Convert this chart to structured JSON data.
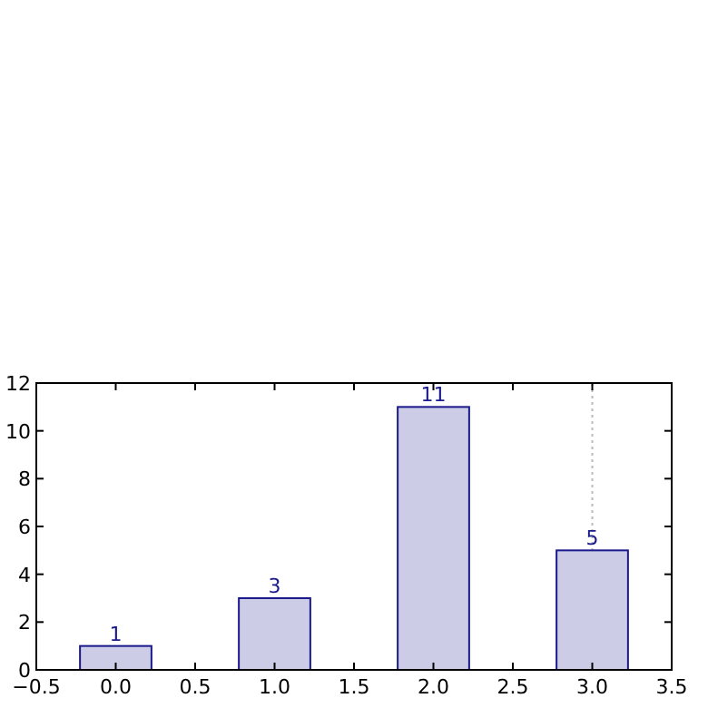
{
  "chart_data": {
    "type": "bar",
    "x": [
      0,
      1,
      2,
      3
    ],
    "values": [
      1,
      3,
      11,
      5
    ],
    "color": "#cccce6",
    "data_labels": true,
    "xlim": [
      -0.5,
      3.5
    ],
    "xticks": [
      {
        "value": -0.5,
        "label": "−0.5"
      },
      {
        "value": 0,
        "label": "0.0"
      },
      {
        "value": 0.5,
        "label": "0.5"
      },
      {
        "value": 1,
        "label": "1.0"
      },
      {
        "value": 1.5,
        "label": "1.5"
      },
      {
        "value": 2,
        "label": "2.0"
      },
      {
        "value": 2.5,
        "label": "2.5"
      },
      {
        "value": 3,
        "label": "3.0"
      },
      {
        "value": 3.5,
        "label": "3.5"
      }
    ],
    "ylim": [
      0,
      12
    ],
    "yticks": [
      0,
      2,
      4,
      6,
      8,
      10,
      12
    ],
    "ref_lines": [
      {
        "axis": "x",
        "value": 3,
        "color": "#bbbbbb",
        "line_style": "dotted"
      }
    ]
  }
}
